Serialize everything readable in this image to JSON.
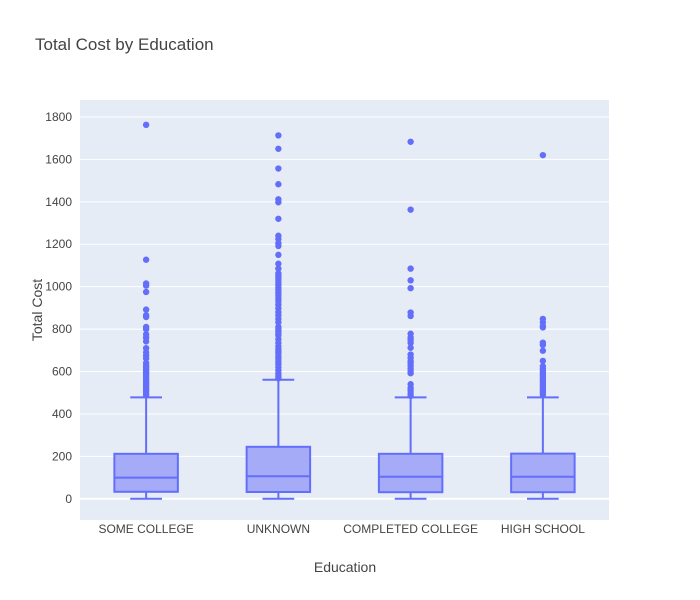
{
  "chart_data": {
    "type": "box",
    "title": "Total Cost by Education",
    "xlabel": "Education",
    "ylabel": "Total Cost",
    "ylim": [
      -100,
      1880
    ],
    "yticks": [
      0,
      200,
      400,
      600,
      800,
      1000,
      1200,
      1400,
      1600,
      1800
    ],
    "grid": true,
    "legend": "none",
    "colors": {
      "box": "#636efa",
      "box_fill": "#a5abf7",
      "plot_bg": "#e5ecf6"
    },
    "categories": [
      "SOME COLLEGE",
      "UNKNOWN",
      "COMPLETED COLLEGE",
      "HIGH SCHOOL"
    ],
    "boxes": [
      {
        "category": "SOME COLLEGE",
        "min": 0,
        "q1": 33,
        "median": 100,
        "q3": 212,
        "max": 478,
        "outliers": [
          1763,
          1127,
          1015,
          1005,
          975,
          892,
          865,
          857,
          810,
          800,
          775,
          760,
          742,
          710,
          690,
          675,
          662,
          640,
          628,
          618,
          610,
          600,
          593,
          584,
          575,
          565,
          556,
          547,
          540,
          530,
          522,
          514,
          505,
          497,
          488
        ]
      },
      {
        "category": "UNKNOWN",
        "min": 0,
        "q1": 32,
        "median": 106,
        "q3": 245,
        "max": 561,
        "outliers": [
          1713,
          1650,
          1557,
          1483,
          1412,
          1398,
          1320,
          1240,
          1225,
          1205,
          1192,
          1150,
          1108,
          1085,
          1062,
          1052,
          1042,
          1032,
          1020,
          1008,
          995,
          983,
          970,
          958,
          945,
          932,
          915,
          898,
          880,
          865,
          848,
          832,
          810,
          800,
          790,
          780,
          770,
          752,
          735,
          718,
          705,
          695,
          685,
          672,
          660,
          648,
          635,
          620,
          605,
          590,
          578,
          568
        ]
      },
      {
        "category": "COMPLETED COLLEGE",
        "min": 0,
        "q1": 31,
        "median": 104,
        "q3": 212,
        "max": 478,
        "outliers": [
          1683,
          1363,
          1085,
          1030,
          993,
          878,
          862,
          778,
          760,
          748,
          735,
          712,
          680,
          665,
          650,
          640,
          628,
          615,
          603,
          592,
          540,
          522,
          510,
          497,
          485
        ]
      },
      {
        "category": "HIGH SCHOOL",
        "min": 0,
        "q1": 31,
        "median": 104,
        "q3": 213,
        "max": 478,
        "outliers": [
          1620,
          848,
          832,
          815,
          808,
          736,
          725,
          698,
          650,
          625,
          612,
          600,
          590,
          580,
          570,
          560,
          550,
          540,
          530,
          520,
          510,
          500,
          490
        ]
      }
    ]
  }
}
